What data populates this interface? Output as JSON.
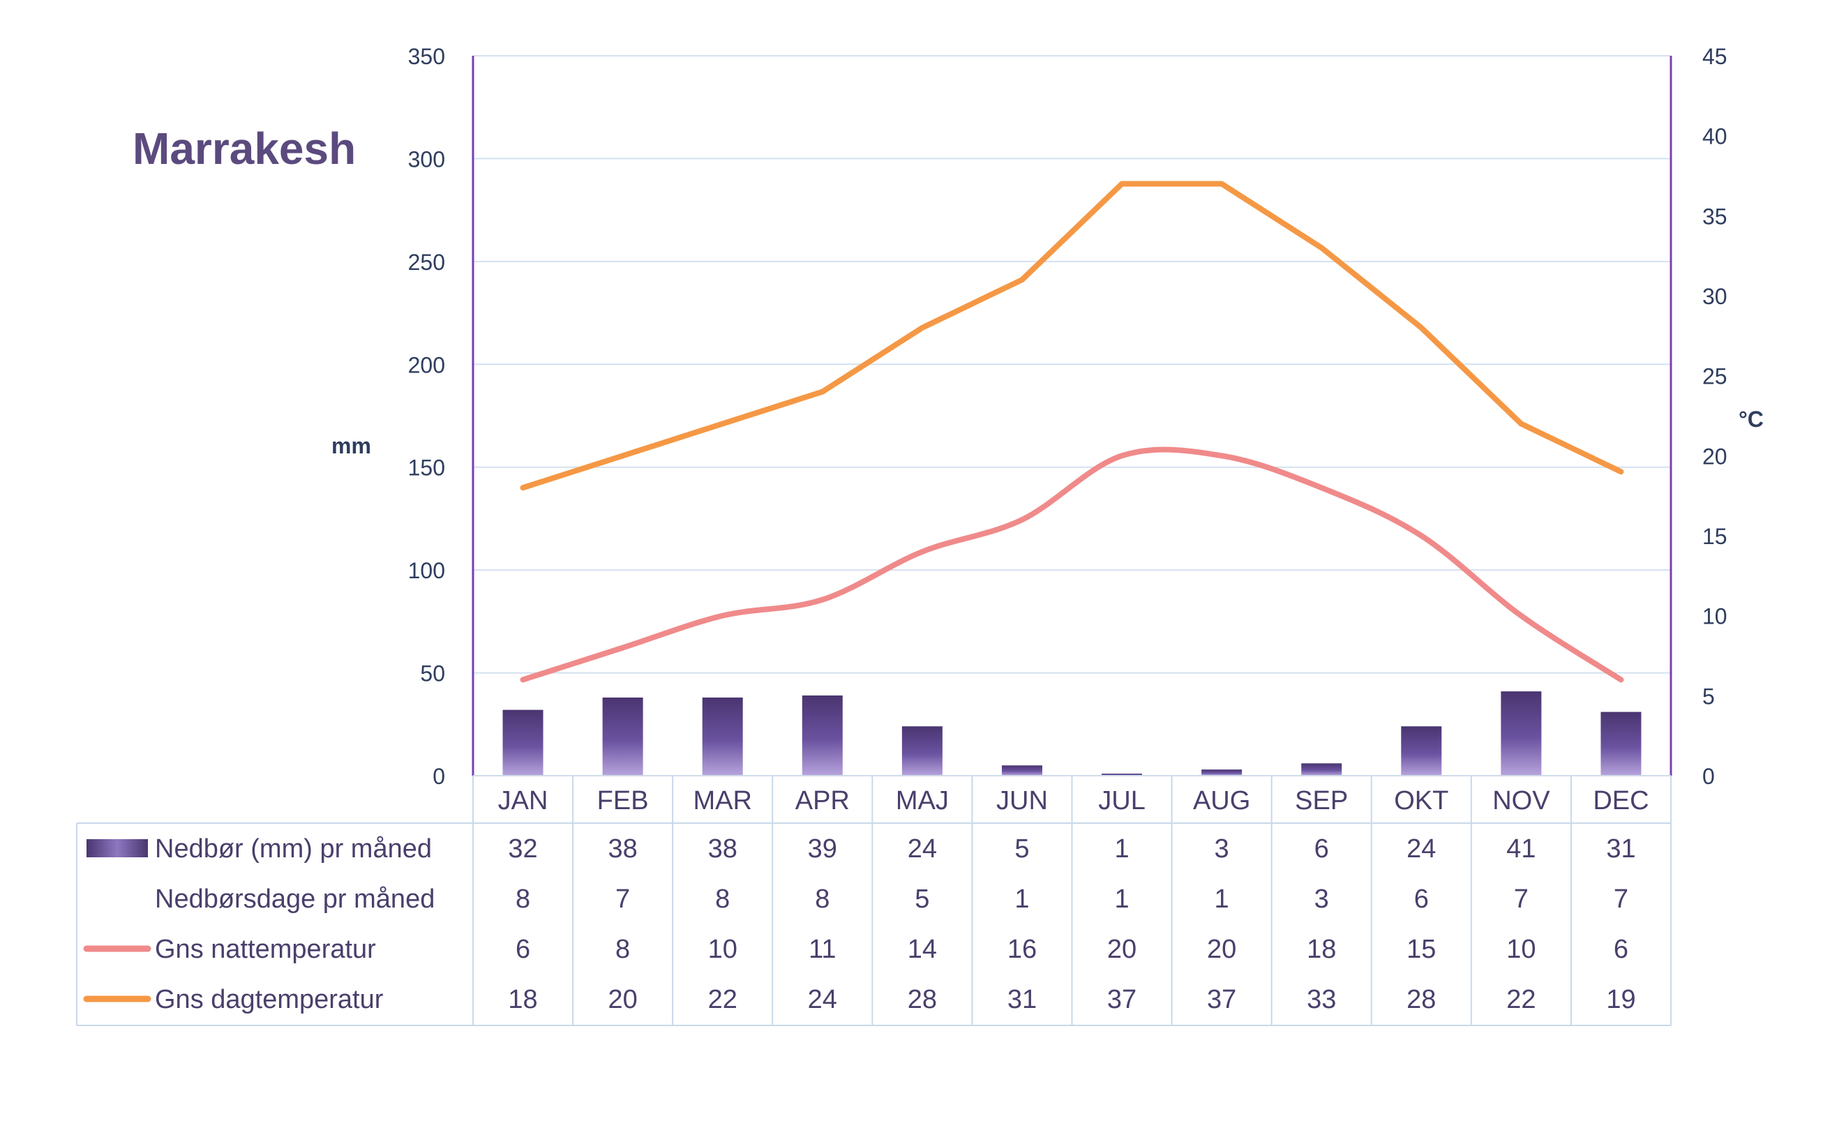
{
  "chart_data": {
    "type": "bar",
    "title": "Marrakesh",
    "categories": [
      "JAN",
      "FEB",
      "MAR",
      "APR",
      "MAJ",
      "JUN",
      "JUL",
      "AUG",
      "SEP",
      "OKT",
      "NOV",
      "DEC"
    ],
    "left_axis": {
      "label": "mm",
      "range": [
        0,
        350
      ],
      "ticks": [
        "0",
        "50",
        "100",
        "150",
        "200",
        "250",
        "300",
        "350"
      ]
    },
    "right_axis": {
      "label": "°C",
      "range": [
        0,
        45
      ],
      "ticks": [
        "0",
        "5",
        "10",
        "15",
        "20",
        "25",
        "30",
        "35",
        "40",
        "45"
      ]
    },
    "grid": true,
    "legend_placement": "table below chart",
    "series": [
      {
        "name": "Nedbør (mm) pr måned",
        "kind": "bar",
        "axis": "left",
        "color": "#5a4582",
        "values": [
          32,
          38,
          38,
          39,
          24,
          5,
          1,
          3,
          6,
          24,
          41,
          31
        ],
        "labels": [
          "32",
          "38",
          "38",
          "39",
          "24",
          "5",
          "1",
          "3",
          "6",
          "24",
          "41",
          "31"
        ]
      },
      {
        "name": "Nedbørsdage pr måned",
        "kind": "table-only",
        "values": [
          8,
          7,
          8,
          8,
          5,
          1,
          1,
          1,
          3,
          6,
          7,
          7
        ],
        "labels": [
          "8",
          "7",
          "8",
          "8",
          "5",
          "1",
          "1",
          "1",
          "3",
          "6",
          "7",
          "7"
        ]
      },
      {
        "name": "Gns nattemperatur",
        "kind": "line",
        "axis": "right",
        "color": "#f08a8a",
        "values": [
          6,
          8,
          10,
          11,
          14,
          16,
          20,
          20,
          18,
          15,
          10,
          6
        ],
        "labels": [
          "6",
          "8",
          "10",
          "11",
          "14",
          "16",
          "20",
          "20",
          "18",
          "15",
          "10",
          "6"
        ]
      },
      {
        "name": "Gns dagtemperatur",
        "kind": "line",
        "axis": "right",
        "color": "#f59845",
        "values": [
          18,
          20,
          22,
          24,
          28,
          31,
          37,
          37,
          33,
          28,
          22,
          19
        ],
        "labels": [
          "18",
          "20",
          "22",
          "24",
          "28",
          "31",
          "37",
          "37",
          "33",
          "28",
          "22",
          "19"
        ]
      }
    ]
  }
}
